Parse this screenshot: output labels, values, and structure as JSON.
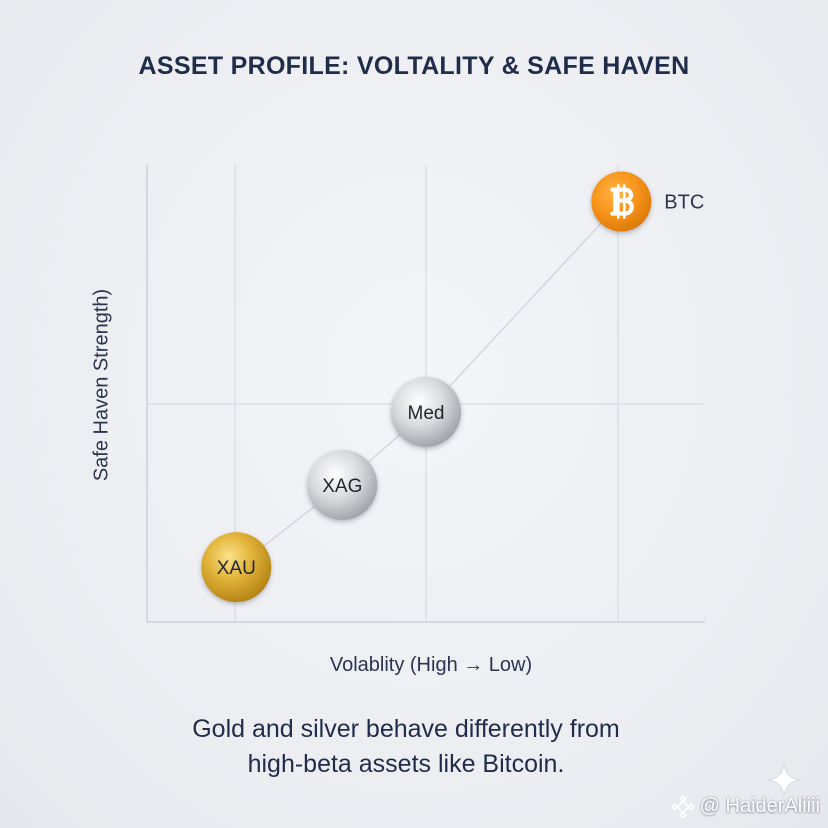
{
  "chart_data": {
    "type": "scatter",
    "title": "ASSET PROFILE: VOLTALITY & SAFE HAVEN",
    "xlabel": "Volablity (High → Low)",
    "ylabel": "Safe Haven Strength)",
    "xlim": [
      0,
      10
    ],
    "ylim": [
      0,
      10
    ],
    "grid": true,
    "points": [
      {
        "label": "XAU",
        "x": 1.6,
        "y": 1.2,
        "color": "#d9a520",
        "style": "gold"
      },
      {
        "label": "XAG",
        "x": 3.5,
        "y": 3.0,
        "color": "#c4c6cb",
        "style": "silver"
      },
      {
        "label": "Med",
        "x": 5.0,
        "y": 4.6,
        "color": "#c4c6cb",
        "style": "silver"
      },
      {
        "label": "BTC",
        "x": 8.5,
        "y": 9.2,
        "color": "#f7931a",
        "style": "bitcoin",
        "icon": "bitcoin-icon"
      }
    ],
    "trend_line": true
  },
  "caption": {
    "line1": "Gold and silver behave differently from",
    "line2": "high-beta assets like Bitcoin."
  },
  "watermark": {
    "text": "@ HaiderAliiii",
    "icon": "binance-logo-icon"
  },
  "decorations": {
    "sparkle_icon": "sparkle-icon"
  }
}
